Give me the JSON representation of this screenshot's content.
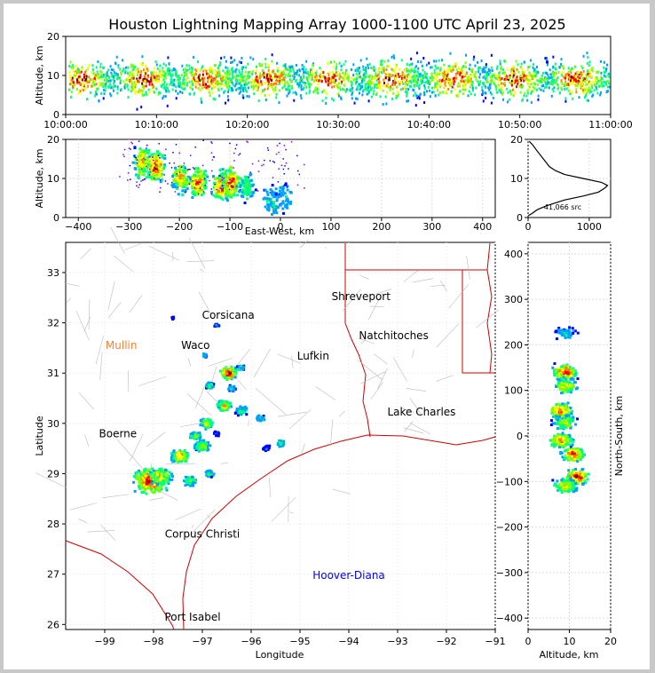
{
  "title": "Houston Lightning Mapping Array 1000-1100 UTC April 23, 2025",
  "colors": {
    "scale": [
      "#0000ff",
      "#00a0ff",
      "#00ff80",
      "#80ff00",
      "#ffff00",
      "#ff8000",
      "#ff0000",
      "#800000",
      "#ffffff"
    ]
  },
  "chart_data": [
    {
      "type": "heatmap",
      "name": "altitude-vs-time",
      "ylabel": "Altitude, km",
      "ylim": [
        0,
        20
      ],
      "yticks": [
        "0",
        "10",
        "20"
      ],
      "xticks": [
        "10:00:00",
        "10:10:00",
        "10:20:00",
        "10:30:00",
        "10:40:00",
        "10:50:00",
        "11:00:00"
      ],
      "band_center_km": 9
    },
    {
      "type": "heatmap",
      "name": "altitude-vs-east-west",
      "xlabel": "East-West, km",
      "ylabel": "Altitude, km",
      "xlim": [
        -425,
        425
      ],
      "ylim": [
        0,
        20
      ],
      "xticks": [
        "−400",
        "−300",
        "−200",
        "−100",
        "0",
        "100",
        "200",
        "300",
        "400"
      ],
      "yticks": [
        "0",
        "10",
        "20"
      ],
      "cells": [
        {
          "x": -275,
          "alt": 14,
          "d": 0.8
        },
        {
          "x": -250,
          "alt": 13,
          "d": 1.0
        },
        {
          "x": -200,
          "alt": 10,
          "d": 0.8
        },
        {
          "x": -165,
          "alt": 9,
          "d": 0.9
        },
        {
          "x": -120,
          "alt": 8,
          "d": 0.9
        },
        {
          "x": -100,
          "alt": 9,
          "d": 1.0
        },
        {
          "x": -70,
          "alt": 8,
          "d": 0.5
        },
        {
          "x": -20,
          "alt": 4,
          "d": 0.4
        },
        {
          "x": 5,
          "alt": 5,
          "d": 0.3
        }
      ]
    },
    {
      "type": "line",
      "name": "altitude-histogram",
      "source_count": "41,066 src",
      "xlim": [
        0,
        1350
      ],
      "ylim": [
        0,
        20
      ],
      "xticks": [
        "0",
        "1000"
      ],
      "yticks": [
        "0",
        "10",
        "20"
      ],
      "points": [
        [
          5,
          0.5
        ],
        [
          60,
          1
        ],
        [
          150,
          2
        ],
        [
          300,
          3
        ],
        [
          600,
          4.5
        ],
        [
          900,
          5.5
        ],
        [
          1150,
          6.5
        ],
        [
          1250,
          7.5
        ],
        [
          1300,
          8.2
        ],
        [
          1200,
          9
        ],
        [
          900,
          10
        ],
        [
          600,
          11
        ],
        [
          450,
          12
        ],
        [
          350,
          13
        ],
        [
          250,
          15
        ],
        [
          150,
          17
        ],
        [
          80,
          18.5
        ],
        [
          20,
          19.5
        ]
      ]
    },
    {
      "type": "scatter",
      "name": "plan-view-map",
      "xlabel": "Longitude",
      "ylabel": "Latitude",
      "xlim": [
        -99.8,
        -91
      ],
      "ylim": [
        25.9,
        33.6
      ],
      "xticks": [
        "−99",
        "−98",
        "−97",
        "−96",
        "−95",
        "−94",
        "−93",
        "−92",
        "−91"
      ],
      "yticks": [
        "26",
        "27",
        "28",
        "29",
        "30",
        "31",
        "32",
        "33"
      ],
      "cities": [
        {
          "name": "Shreveport",
          "lon": -93.75,
          "lat": 32.52,
          "color": "#000000"
        },
        {
          "name": "Corsicana",
          "lon": -96.47,
          "lat": 32.15,
          "color": "#000000"
        },
        {
          "name": "Natchitoches",
          "lon": -93.08,
          "lat": 31.75,
          "color": "#000000"
        },
        {
          "name": "Mullin",
          "lon": -98.66,
          "lat": 31.55,
          "color": "#ff7f2a"
        },
        {
          "name": "Waco",
          "lon": -97.14,
          "lat": 31.55,
          "color": "#000000"
        },
        {
          "name": "Lufkin",
          "lon": -94.73,
          "lat": 31.34,
          "color": "#000000"
        },
        {
          "name": "Lake Charles",
          "lon": -92.51,
          "lat": 30.23,
          "color": "#000000"
        },
        {
          "name": "Boerne",
          "lon": -98.73,
          "lat": 29.79,
          "color": "#000000"
        },
        {
          "name": "Corpus Christi",
          "lon": -97.0,
          "lat": 27.8,
          "color": "#000000"
        },
        {
          "name": "Hoover-Diana",
          "lon": -94.0,
          "lat": 26.98,
          "color": "#0000ff"
        },
        {
          "name": "Port Isabel",
          "lon": -97.2,
          "lat": 26.15,
          "color": "#000000"
        }
      ],
      "cells": [
        {
          "lon": -98.05,
          "lat": 28.85,
          "d": 1.0,
          "r": 2.2
        },
        {
          "lon": -97.85,
          "lat": 28.95,
          "d": 0.7,
          "r": 1.5
        },
        {
          "lon": -97.45,
          "lat": 29.35,
          "d": 0.8,
          "r": 1.2
        },
        {
          "lon": -97.0,
          "lat": 29.55,
          "d": 0.6,
          "r": 1.0
        },
        {
          "lon": -97.15,
          "lat": 29.75,
          "d": 0.5,
          "r": 0.8
        },
        {
          "lon": -96.9,
          "lat": 30.0,
          "d": 0.7,
          "r": 0.9
        },
        {
          "lon": -96.55,
          "lat": 30.35,
          "d": 0.7,
          "r": 1.0
        },
        {
          "lon": -96.2,
          "lat": 30.25,
          "d": 0.5,
          "r": 0.8
        },
        {
          "lon": -95.8,
          "lat": 30.1,
          "d": 0.4,
          "r": 0.6
        },
        {
          "lon": -96.45,
          "lat": 31.0,
          "d": 1.0,
          "r": 1.1
        },
        {
          "lon": -96.2,
          "lat": 31.1,
          "d": 0.4,
          "r": 0.5
        },
        {
          "lon": -96.85,
          "lat": 30.75,
          "d": 0.4,
          "r": 0.6
        },
        {
          "lon": -96.95,
          "lat": 31.35,
          "d": 0.3,
          "r": 0.4
        },
        {
          "lon": -96.4,
          "lat": 30.7,
          "d": 0.3,
          "r": 0.6
        },
        {
          "lon": -97.25,
          "lat": 28.85,
          "d": 0.5,
          "r": 0.9
        },
        {
          "lon": -96.85,
          "lat": 29.0,
          "d": 0.4,
          "r": 0.6
        },
        {
          "lon": -95.4,
          "lat": 29.6,
          "d": 0.4,
          "r": 0.6
        },
        {
          "lon": -95.7,
          "lat": 29.5,
          "d": 0.2,
          "r": 0.5
        },
        {
          "lon": -96.7,
          "lat": 29.8,
          "d": 0.2,
          "r": 0.5
        },
        {
          "lon": -96.7,
          "lat": 31.95,
          "d": 0.2,
          "r": 0.4
        },
        {
          "lon": -97.6,
          "lat": 32.1,
          "d": 0.15,
          "r": 0.3
        }
      ]
    },
    {
      "type": "heatmap",
      "name": "north-south-vs-altitude",
      "xlabel": "Altitude, km",
      "ylabel": "North-South, km",
      "xlim": [
        0,
        20
      ],
      "ylim": [
        -425,
        425
      ],
      "xticks": [
        "0",
        "10",
        "20"
      ],
      "yticks": [
        "−400",
        "−300",
        "−200",
        "−100",
        "0",
        "100",
        "200",
        "300",
        "400"
      ],
      "cells": [
        {
          "alt": 9,
          "ns": 140,
          "d": 1.0
        },
        {
          "alt": 9,
          "ns": 110,
          "d": 0.7
        },
        {
          "alt": 8,
          "ns": 55,
          "d": 0.9
        },
        {
          "alt": 9,
          "ns": 30,
          "d": 0.6
        },
        {
          "alt": 8,
          "ns": -10,
          "d": 0.8
        },
        {
          "alt": 11,
          "ns": -40,
          "d": 0.9
        },
        {
          "alt": 12,
          "ns": -90,
          "d": 1.0
        },
        {
          "alt": 9,
          "ns": -110,
          "d": 0.7
        },
        {
          "alt": 9,
          "ns": 225,
          "d": 0.3
        }
      ]
    }
  ]
}
